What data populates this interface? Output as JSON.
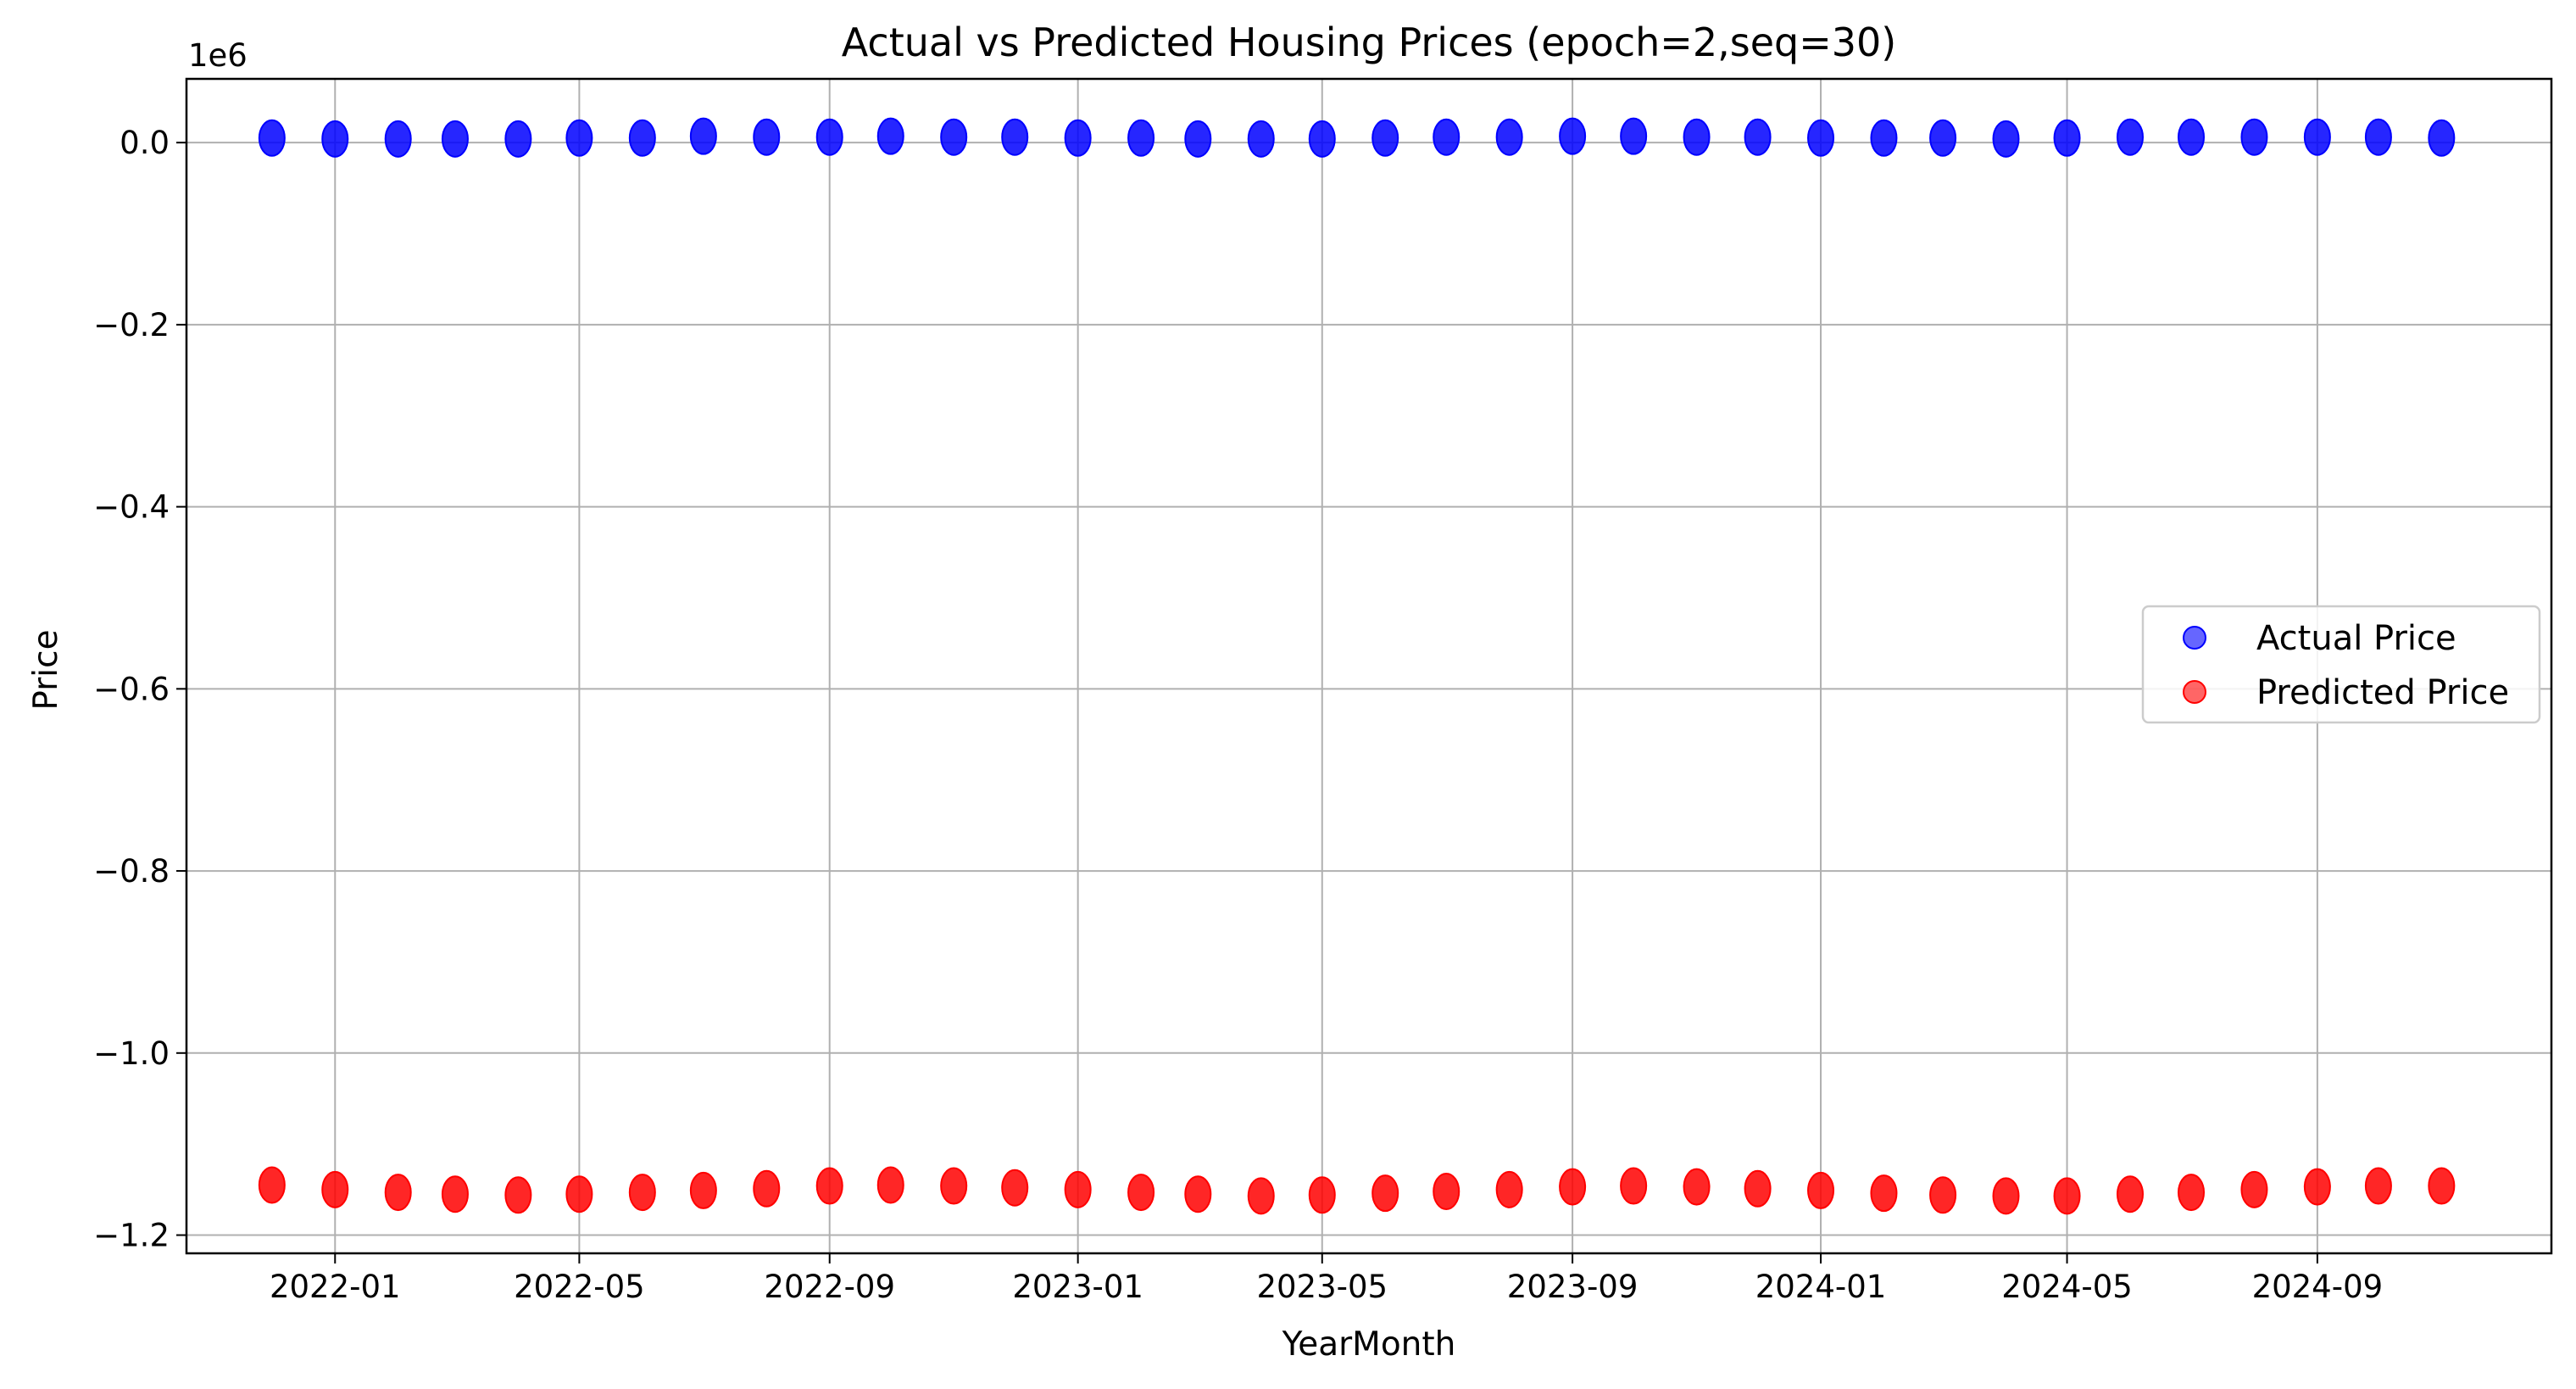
{
  "chart_data": {
    "type": "scatter",
    "title": "Actual vs Predicted Housing Prices (epoch=2,seq=30)",
    "xlabel": "YearMonth",
    "ylabel": "Price",
    "y_offset_text": "1e6",
    "y_scale_factor": 1000000,
    "xlim": [
      "2021-10-20",
      "2024-12-25"
    ],
    "ylim": [
      -1220000,
      70000
    ],
    "x_ticks": [
      "2022-01",
      "2022-05",
      "2022-09",
      "2023-01",
      "2023-05",
      "2023-09",
      "2024-01",
      "2024-05",
      "2024-09"
    ],
    "y_ticks": [
      0.0,
      -0.2,
      -0.4,
      -0.6,
      -0.8,
      -1.0,
      -1.2
    ],
    "grid": true,
    "legend_placement": "center-right",
    "x": [
      "2021-12",
      "2022-01",
      "2022-02",
      "2022-03",
      "2022-04",
      "2022-05",
      "2022-06",
      "2022-07",
      "2022-08",
      "2022-09",
      "2022-10",
      "2022-11",
      "2022-12",
      "2023-01",
      "2023-02",
      "2023-03",
      "2023-04",
      "2023-05",
      "2023-06",
      "2023-07",
      "2023-08",
      "2023-09",
      "2023-10",
      "2023-11",
      "2023-12",
      "2024-01",
      "2024-02",
      "2024-03",
      "2024-04",
      "2024-05",
      "2024-06",
      "2024-07",
      "2024-08",
      "2024-09",
      "2024-10",
      "2024-11"
    ],
    "series": [
      {
        "name": "Actual Price",
        "color": "#0000ff",
        "values": [
          5000,
          4000,
          4000,
          4000,
          4000,
          5000,
          5000,
          7000,
          6000,
          6000,
          7000,
          6000,
          6000,
          5000,
          5000,
          4000,
          4000,
          4000,
          5000,
          6000,
          6000,
          7000,
          7000,
          6000,
          6000,
          5000,
          5000,
          5000,
          4000,
          5000,
          6000,
          6000,
          6000,
          6000,
          6000,
          5000
        ]
      },
      {
        "name": "Predicted Price",
        "color": "#ff0000",
        "values": [
          -1145000,
          -1150000,
          -1153000,
          -1155000,
          -1156000,
          -1155000,
          -1153000,
          -1151000,
          -1149000,
          -1146000,
          -1145000,
          -1146000,
          -1148000,
          -1150000,
          -1153000,
          -1155000,
          -1157000,
          -1156000,
          -1154000,
          -1152000,
          -1150000,
          -1147000,
          -1146000,
          -1147000,
          -1149000,
          -1151000,
          -1154000,
          -1156000,
          -1157000,
          -1157000,
          -1155000,
          -1153000,
          -1150000,
          -1147000,
          -1146000,
          -1146000
        ]
      }
    ]
  }
}
